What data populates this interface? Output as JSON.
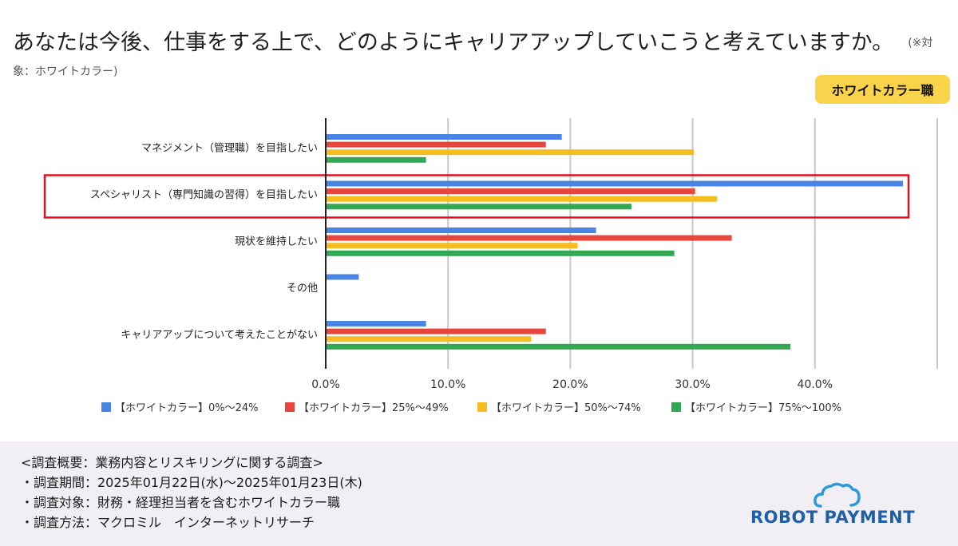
{
  "title": {
    "main": "あなたは今後、仕事をする上で、どのようにキャリアアップしていこうと考えていますか。",
    "note": "(※対象：ホワイトカラー)"
  },
  "badge": "ホワイトカラー職",
  "colors": {
    "blue": "#4a85e6",
    "red": "#e6463c",
    "yellow": "#f5bd1f",
    "green": "#33a852",
    "highlight": "#e0101c",
    "grid": "#c8c8c8",
    "axis": "#222222"
  },
  "chart_data": {
    "type": "bar",
    "orientation": "horizontal",
    "categories": [
      "マネジメント（管理職）を目指したい",
      "スペシャリスト（専門知識の習得）を目指したい",
      "現状を維持したい",
      "その他",
      "キャリアアップについて考えたことがない"
    ],
    "series": [
      {
        "name": "【ホワイトカラー】0%〜24%",
        "color": "#4a85e6",
        "values": [
          19.3,
          47.2,
          22.1,
          2.7,
          8.2
        ]
      },
      {
        "name": "【ホワイトカラー】25%〜49%",
        "color": "#e6463c",
        "values": [
          18.0,
          30.2,
          33.2,
          0,
          18.0
        ]
      },
      {
        "name": "【ホワイトカラー】50%〜74%",
        "color": "#f5bd1f",
        "values": [
          30.1,
          32.0,
          20.6,
          0,
          16.8
        ]
      },
      {
        "name": "【ホワイトカラー】75%〜100%",
        "color": "#33a852",
        "values": [
          8.2,
          25.0,
          28.5,
          0,
          38.0
        ]
      }
    ],
    "xlim": [
      0,
      50
    ],
    "ticks": [
      0,
      10,
      20,
      30,
      40
    ],
    "tick_labels": [
      "0.0%",
      "10.0%",
      "20.0%",
      "30.0%",
      "40.0%"
    ],
    "highlighted_category": "スペシャリスト（専門知識の習得）を目指したい",
    "legend_position": "bottom"
  },
  "footer": {
    "heading": "<調査概要：業務内容とリスキリングに関する調査>",
    "period": "・調査期間：2025年01月22日(水)〜2025年01月23日(木)",
    "target": "・調査対象：財務・経理担当者を含むホワイトカラー職",
    "method": "・調査方法：マクロミル　インターネットリサーチ"
  },
  "logo": {
    "text": "ROBOT PAYMENT",
    "color": "#1f5fa8"
  }
}
